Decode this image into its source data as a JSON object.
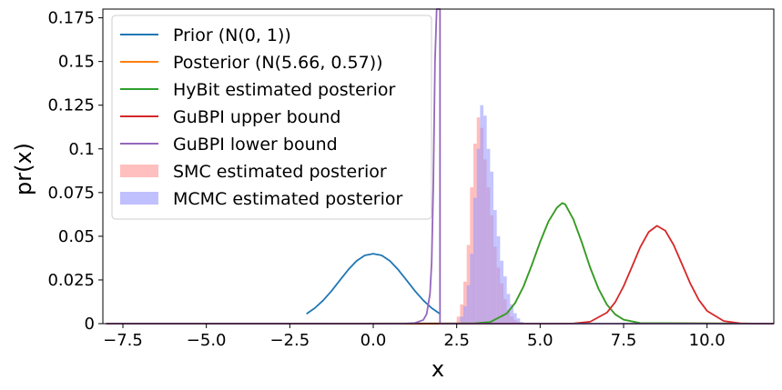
{
  "chart_data": {
    "type": "line",
    "xlabel": "x",
    "ylabel": "pr(x)",
    "xlim": [
      -8.1,
      12.0
    ],
    "ylim": [
      0,
      0.18
    ],
    "xticks": [
      -7.5,
      -5.0,
      -2.5,
      0.0,
      2.5,
      5.0,
      7.5,
      10.0
    ],
    "xtick_labels": [
      "−7.5",
      "−5.0",
      "−2.5",
      "0.0",
      "2.5",
      "5.0",
      "7.5",
      "10.0"
    ],
    "yticks": [
      0,
      0.025,
      0.05,
      0.075,
      0.1,
      0.125,
      0.15,
      0.175
    ],
    "ytick_labels": [
      "0",
      "0.025",
      "0.05",
      "0.075",
      "0.1",
      "0.125",
      "0.15",
      "0.175"
    ],
    "grid": false,
    "legend_position": "upper-left",
    "series": [
      {
        "name": "Prior (N(0, 1))",
        "kind": "line",
        "color": "#1f77b4",
        "x": [
          -2.0,
          -1.75,
          -1.5,
          -1.25,
          -1.0,
          -0.75,
          -0.5,
          -0.25,
          0.0,
          0.25,
          0.5,
          0.75,
          1.0,
          1.25,
          1.5,
          1.75,
          2.0
        ],
        "y": [
          0.0056,
          0.0089,
          0.0133,
          0.0187,
          0.0248,
          0.0308,
          0.0359,
          0.0391,
          0.04,
          0.0391,
          0.0359,
          0.0308,
          0.0248,
          0.0187,
          0.0133,
          0.0089,
          0.0056
        ]
      },
      {
        "name": "Posterior (N(5.66, 0.57))",
        "kind": "line",
        "color": "#ff7f0e",
        "x": [
          -8.0,
          3.0,
          3.5,
          4.0,
          4.25,
          4.5,
          4.75,
          5.0,
          5.25,
          5.5,
          5.66,
          5.75,
          6.0,
          6.25,
          6.5,
          6.75,
          7.0,
          7.25,
          7.5,
          8.0,
          12.0
        ],
        "y": [
          0,
          0.0001,
          0.0009,
          0.0058,
          0.0118,
          0.0212,
          0.0335,
          0.0468,
          0.0585,
          0.0663,
          0.069,
          0.0683,
          0.0595,
          0.0464,
          0.032,
          0.0199,
          0.0109,
          0.0053,
          0.0023,
          0.0003,
          0
        ]
      },
      {
        "name": "HyBit estimated posterior",
        "kind": "line",
        "color": "#2ca02c",
        "x": [
          -8.0,
          3.0,
          3.5,
          4.0,
          4.25,
          4.5,
          4.75,
          5.0,
          5.25,
          5.5,
          5.66,
          5.75,
          6.0,
          6.25,
          6.5,
          6.75,
          7.0,
          7.25,
          7.5,
          8.0,
          12.0
        ],
        "y": [
          0,
          0.0001,
          0.0009,
          0.0058,
          0.0118,
          0.0212,
          0.0335,
          0.0468,
          0.0585,
          0.0663,
          0.069,
          0.0683,
          0.0595,
          0.0464,
          0.032,
          0.0199,
          0.0109,
          0.0053,
          0.0023,
          0.0003,
          0
        ]
      },
      {
        "name": "GuBPI upper bound",
        "kind": "line",
        "color": "#d62728",
        "x": [
          -8.0,
          5.5,
          6.0,
          6.5,
          7.0,
          7.25,
          7.5,
          7.75,
          8.0,
          8.25,
          8.5,
          8.75,
          9.0,
          9.25,
          9.5,
          9.75,
          10.0,
          10.5,
          11.0,
          11.5,
          12.0
        ],
        "y": [
          0,
          0,
          0.0001,
          0.0011,
          0.0063,
          0.0123,
          0.0214,
          0.0325,
          0.0438,
          0.0524,
          0.056,
          0.0532,
          0.045,
          0.034,
          0.0229,
          0.0137,
          0.0073,
          0.0015,
          0.0002,
          0,
          0
        ]
      },
      {
        "name": "GuBPI lower bound",
        "kind": "line",
        "color": "#9467bd",
        "x": [
          -8.0,
          0.5,
          1.0,
          1.25,
          1.5,
          1.6,
          1.7,
          1.75,
          1.8,
          1.85,
          1.9,
          1.95,
          1.96,
          2.0,
          2.0,
          2.0,
          12.0
        ],
        "y": [
          0,
          0,
          0.0001,
          0.0004,
          0.0021,
          0.0055,
          0.017,
          0.035,
          0.08,
          0.15,
          0.18,
          0.18,
          0.18,
          0.18,
          0.18,
          0,
          0
        ]
      },
      {
        "name": "SMC estimated posterior",
        "kind": "hist",
        "color": "#ff9896",
        "bin_edges": [
          2.5,
          2.6,
          2.7,
          2.8,
          2.9,
          3.0,
          3.1,
          3.2,
          3.3,
          3.4,
          3.5,
          3.6,
          3.7,
          3.8,
          3.9,
          4.0,
          4.1,
          4.2,
          4.3,
          4.4
        ],
        "values": [
          0.004,
          0.011,
          0.024,
          0.045,
          0.078,
          0.103,
          0.118,
          0.112,
          0.094,
          0.078,
          0.062,
          0.044,
          0.032,
          0.023,
          0.014,
          0.008,
          0.004,
          0.002,
          0.001
        ]
      },
      {
        "name": "MCMC estimated posterior",
        "kind": "hist",
        "color": "#9999ff",
        "bin_edges": [
          2.6,
          2.7,
          2.8,
          2.9,
          3.0,
          3.1,
          3.2,
          3.3,
          3.4,
          3.5,
          3.6,
          3.7,
          3.8,
          3.9,
          4.0,
          4.1,
          4.2,
          4.3,
          4.4,
          4.5
        ],
        "values": [
          0.004,
          0.01,
          0.022,
          0.04,
          0.072,
          0.1,
          0.125,
          0.119,
          0.1,
          0.087,
          0.065,
          0.05,
          0.036,
          0.027,
          0.017,
          0.011,
          0.006,
          0.003,
          0.001
        ]
      }
    ]
  }
}
